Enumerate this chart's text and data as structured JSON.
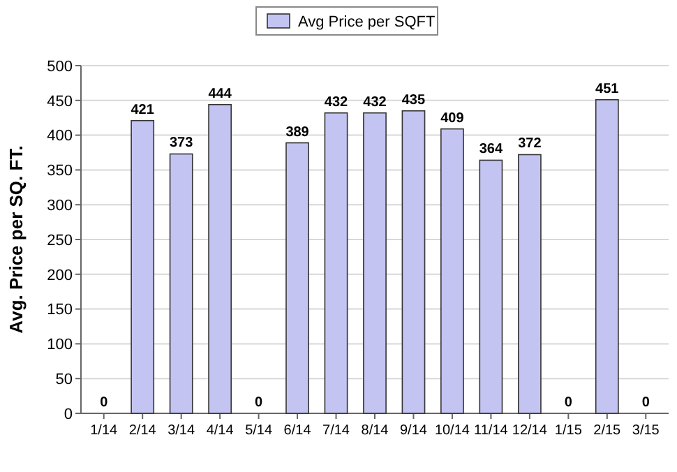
{
  "chart_data": {
    "type": "bar",
    "ylabel": "Avg. Price per SQ. FT.",
    "categories": [
      "1/14",
      "2/14",
      "3/14",
      "4/14",
      "5/14",
      "6/14",
      "7/14",
      "8/14",
      "9/14",
      "10/14",
      "11/14",
      "12/14",
      "1/15",
      "2/15",
      "3/15"
    ],
    "series": [
      {
        "name": "Avg Price per SQFT",
        "color": "#c4c4f2",
        "values": [
          0,
          421,
          373,
          444,
          0,
          389,
          432,
          432,
          435,
          409,
          364,
          372,
          0,
          451,
          0
        ]
      }
    ],
    "ylim": [
      0,
      500
    ],
    "yticks": [
      0,
      50,
      100,
      150,
      200,
      250,
      300,
      350,
      400,
      450,
      500
    ],
    "grid": "y",
    "legend": "top",
    "data_labels": true
  }
}
